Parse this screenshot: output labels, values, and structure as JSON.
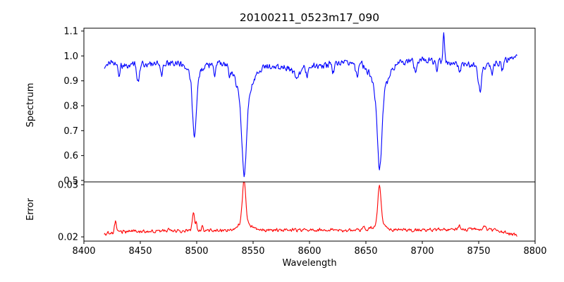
{
  "title": "20100211_0523m17_090",
  "chart_data": {
    "type": "line",
    "title": "20100211_0523m17_090",
    "xlabel": "Wavelength",
    "x_range": [
      8400,
      8800
    ],
    "xticks": [
      8400,
      8450,
      8500,
      8550,
      8600,
      8650,
      8700,
      8750,
      8800
    ],
    "x_data_range": [
      8418,
      8784
    ],
    "x_step": 0.5,
    "grid": false,
    "legend": "none",
    "panels": [
      {
        "name": "spectrum",
        "ylabel": "Spectrum",
        "ylim": [
          0.4943,
          1.1113
        ],
        "yticks": [
          0.5,
          0.6,
          0.7,
          0.8,
          0.9,
          1.0,
          1.1
        ],
        "ytick_labels": [
          "0.5",
          "0.6",
          "0.7",
          "0.8",
          "0.9",
          "1.0",
          "1.1"
        ],
        "series": {
          "name": "Spectrum",
          "color": "#0000ff",
          "continuum_anchors": [
            [
              8418,
              0.952
            ],
            [
              8424,
              0.975
            ],
            [
              8435,
              0.962
            ],
            [
              8455,
              0.966
            ],
            [
              8470,
              0.974
            ],
            [
              8488,
              0.974
            ],
            [
              8510,
              0.968
            ],
            [
              8525,
              0.974
            ],
            [
              8538,
              0.968
            ],
            [
              8555,
              0.962
            ],
            [
              8572,
              0.952
            ],
            [
              8590,
              0.952
            ],
            [
              8608,
              0.963
            ],
            [
              8625,
              0.969
            ],
            [
              8645,
              0.973
            ],
            [
              8668,
              0.969
            ],
            [
              8686,
              0.975
            ],
            [
              8705,
              0.983
            ],
            [
              8722,
              0.976
            ],
            [
              8738,
              0.968
            ],
            [
              8752,
              0.958
            ],
            [
              8766,
              0.972
            ],
            [
              8778,
              0.988
            ],
            [
              8784,
              1.005
            ]
          ],
          "absorption_lines": [
            [
              8431,
              0.05,
              0.9
            ],
            [
              8448,
              0.072,
              1.1
            ],
            [
              8469,
              0.048,
              1.0
            ],
            [
              8498.02,
              0.245,
              1.6
            ],
            [
              8498.02,
              0.06,
              5.0
            ],
            [
              8516,
              0.05,
              1.0
            ],
            [
              8529,
              0.035,
              0.8
            ],
            [
              8542.09,
              0.315,
              2.0
            ],
            [
              8542.09,
              0.13,
              7.0
            ],
            [
              8589,
              0.035,
              2.5
            ],
            [
              8598,
              0.042,
              1.0
            ],
            [
              8621,
              0.035,
              0.9
            ],
            [
              8642,
              0.055,
              1.1
            ],
            [
              8662.14,
              0.3,
              1.9
            ],
            [
              8662.14,
              0.125,
              6.5
            ],
            [
              8694,
              0.047,
              1.0
            ],
            [
              8713,
              0.036,
              0.8
            ],
            [
              8733,
              0.047,
              0.9
            ],
            [
              8751,
              0.098,
              1.6
            ],
            [
              8762,
              0.046,
              0.9
            ],
            [
              8771,
              0.036,
              0.8
            ]
          ],
          "emission_lines": [
            [
              8719,
              0.105,
              0.7
            ]
          ],
          "noise_amplitude": 0.014,
          "noise_seed": 20100211
        }
      },
      {
        "name": "error",
        "ylabel": "Error",
        "ylim": [
          0.01919,
          0.03054
        ],
        "yticks": [
          0.02,
          0.03
        ],
        "ytick_labels": [
          "0.02",
          "0.03"
        ],
        "series": {
          "name": "Error",
          "color": "#ff0000",
          "continuum_anchors": [
            [
              8418,
              0.0206
            ],
            [
              8428,
              0.0209
            ],
            [
              8445,
              0.0211
            ],
            [
              8470,
              0.0211
            ],
            [
              8495,
              0.0212
            ],
            [
              8520,
              0.0212
            ],
            [
              8545,
              0.0214
            ],
            [
              8570,
              0.0213
            ],
            [
              8600,
              0.0213
            ],
            [
              8630,
              0.0213
            ],
            [
              8655,
              0.0214
            ],
            [
              8680,
              0.0213
            ],
            [
              8705,
              0.0213
            ],
            [
              8725,
              0.0214
            ],
            [
              8745,
              0.0215
            ],
            [
              8762,
              0.0213
            ],
            [
              8775,
              0.0208
            ],
            [
              8784,
              0.0203
            ]
          ],
          "absorption_lines": [],
          "emission_lines": [
            [
              8428,
              0.0021,
              0.8
            ],
            [
              8475,
              0.0007,
              0.8
            ],
            [
              8497,
              0.0036,
              0.9
            ],
            [
              8499.5,
              0.0018,
              0.7
            ],
            [
              8505,
              0.001,
              0.8
            ],
            [
              8542,
              0.0079,
              1.5
            ],
            [
              8542,
              0.0014,
              5.0
            ],
            [
              8648,
              0.0007,
              1.0
            ],
            [
              8662,
              0.0072,
              1.4
            ],
            [
              8662,
              0.0012,
              4.5
            ],
            [
              8733,
              0.0006,
              0.9
            ],
            [
              8755,
              0.0008,
              1.0
            ]
          ],
          "noise_amplitude": 0.00035,
          "noise_seed": 523
        }
      }
    ]
  }
}
